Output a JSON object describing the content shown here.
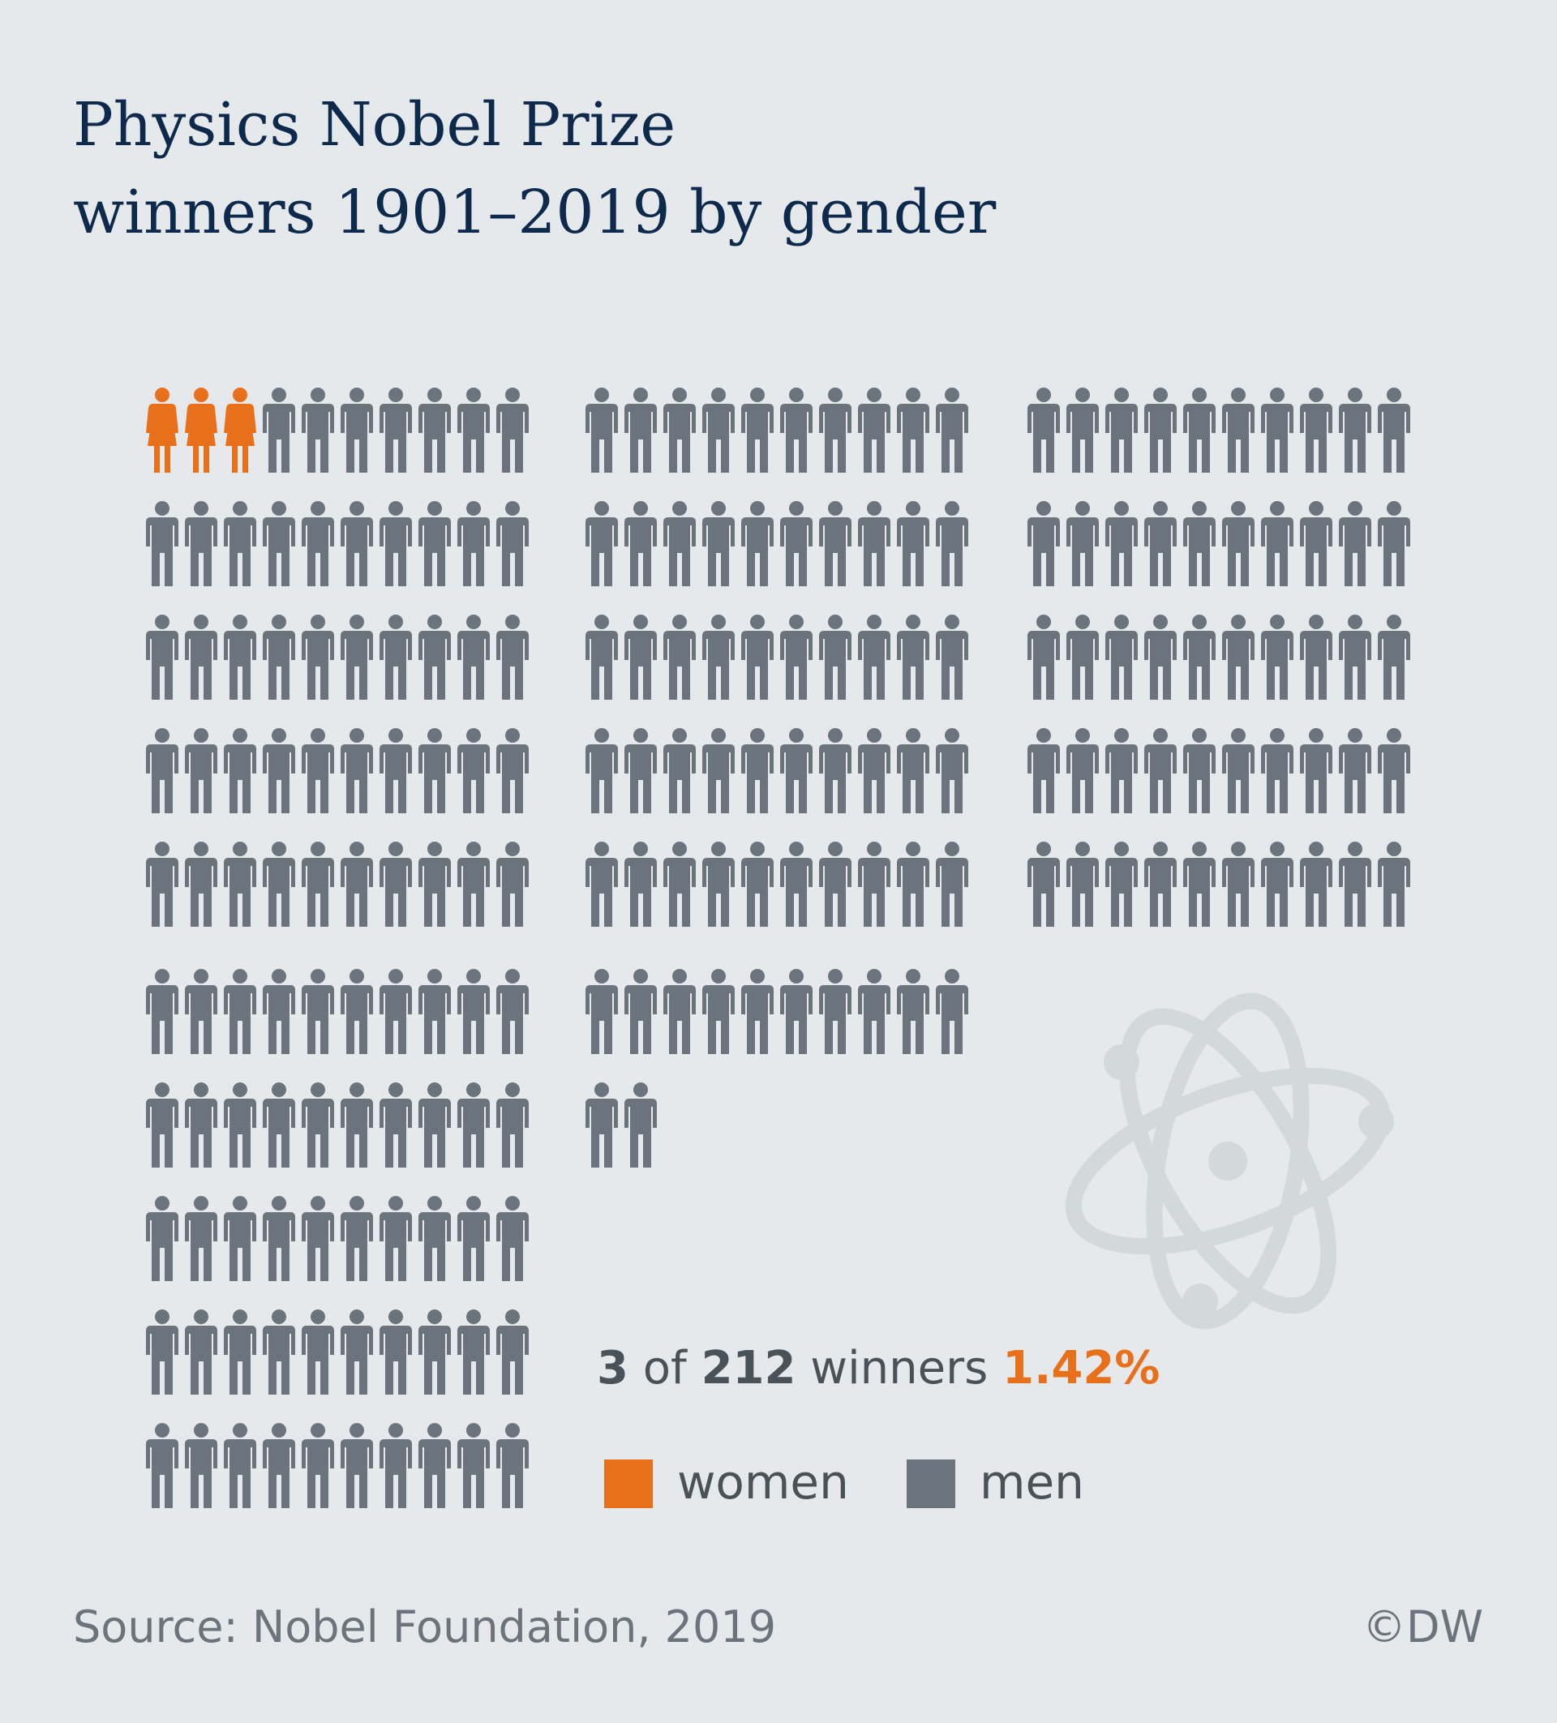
{
  "chart_data": {
    "type": "pictogram",
    "title": "Physics Nobel Prize\nwinners 1901–2019 by gender",
    "series": [
      {
        "name": "women",
        "color": "#e8701a",
        "values": [
          3
        ]
      },
      {
        "name": "men",
        "color": "#6b747c",
        "values": [
          209
        ]
      }
    ],
    "summary": {
      "count": 3,
      "of": "of",
      "total": 212,
      "unit": "winners",
      "share": {
        "value": 1.42,
        "label": "1.42%"
      }
    },
    "source": "Source: Nobel Foundation, 2019",
    "credit": "©DW"
  }
}
